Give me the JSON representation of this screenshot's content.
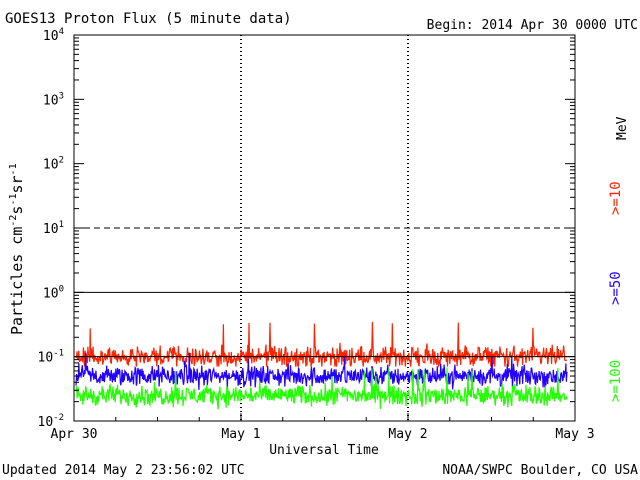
{
  "chart_data": {
    "type": "line",
    "title": "GOES13 Proton Flux (5 minute data)",
    "begin_label": "Begin: 2014 Apr 30 0000 UTC",
    "ylabel_text": "Particles cm",
    "ylabel_units": [
      "-2",
      "s",
      "-1",
      "sr",
      "-1"
    ],
    "xlabel": "Universal Time",
    "ylim": [
      0.01,
      10000
    ],
    "y_scale": "log",
    "ytick_exponents": [
      "-2",
      "-1",
      "0",
      "1",
      "2",
      "3",
      "4"
    ],
    "x_ticks": [
      "Apr 30",
      "May 1",
      "May 2",
      "May 3"
    ],
    "xlim": [
      "2014-04-30 00:00",
      "2014-05-03 00:00"
    ],
    "thresholds": [
      {
        "value": 10,
        "style": "dashed"
      },
      {
        "value": 1,
        "style": "solid"
      },
      {
        "value": 0.1,
        "style": "solid"
      }
    ],
    "series": [
      {
        "name": ">=10",
        "color": "#ff2200",
        "typical": 0.1,
        "min": 0.07,
        "max": 0.35
      },
      {
        "name": ">=50",
        "color": "#2200ff",
        "typical": 0.05,
        "min": 0.025,
        "max": 0.12
      },
      {
        "name": ">=100",
        "color": "#22ff00",
        "typical": 0.025,
        "min": 0.015,
        "max": 0.07
      }
    ],
    "unit_label": "MeV"
  },
  "footer": {
    "updated": "Updated 2014 May  2 23:56:02 UTC",
    "source": "NOAA/SWPC Boulder, CO USA"
  }
}
